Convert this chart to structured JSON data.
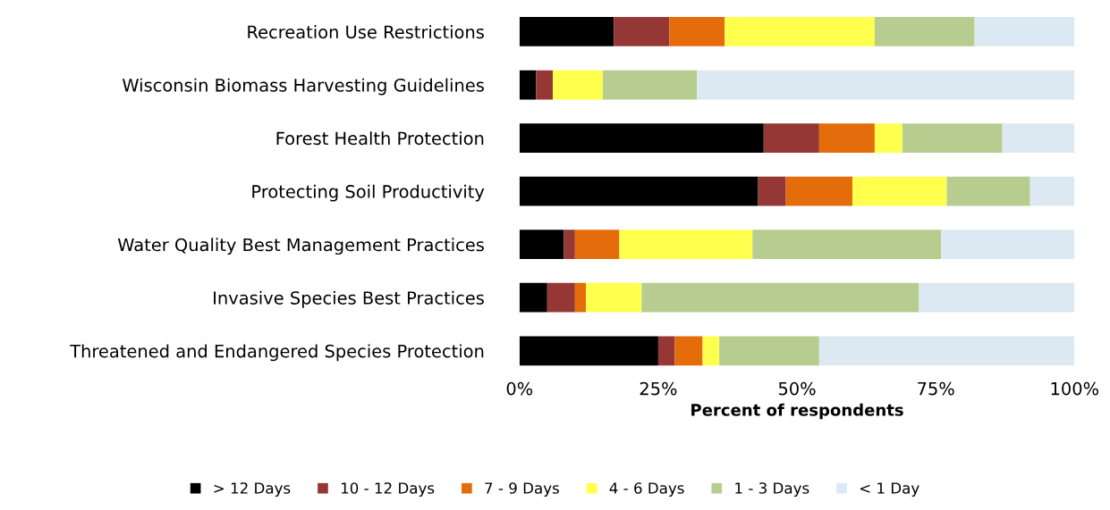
{
  "chart_data": {
    "type": "bar",
    "orientation": "horizontal",
    "stacked": true,
    "xlabel": "Percent of respondents",
    "categories": [
      "Recreation Use Restrictions",
      "Wisconsin Biomass Harvesting Guidelines",
      "Forest Health Protection",
      "Protecting Soil Productivity",
      "Water Quality Best Management Practices",
      "Invasive Species Best Practices",
      "Threatened and Endangered Species Protection"
    ],
    "series": [
      {
        "name": "> 12 Days",
        "color": "#000000",
        "values": [
          17,
          3,
          44,
          43,
          8,
          5,
          25
        ]
      },
      {
        "name": "10 - 12 Days",
        "color": "#953735",
        "values": [
          10,
          3,
          10,
          5,
          2,
          5,
          3
        ]
      },
      {
        "name": "7 - 9 Days",
        "color": "#e46c0a",
        "values": [
          10,
          0,
          10,
          12,
          8,
          2,
          5
        ]
      },
      {
        "name": "4 - 6 Days",
        "color": "#ffff4d",
        "values": [
          27,
          9,
          5,
          17,
          24,
          10,
          3
        ]
      },
      {
        "name": "1 - 3 Days",
        "color": "#b7cc8f",
        "values": [
          18,
          17,
          18,
          15,
          34,
          50,
          18
        ]
      },
      {
        "name": "< 1 Day",
        "color": "#dce9f3",
        "values": [
          18,
          68,
          13,
          8,
          24,
          28,
          46
        ]
      }
    ],
    "xlim": [
      0,
      100
    ],
    "xticks": [
      {
        "value": 0,
        "label": "0%"
      },
      {
        "value": 25,
        "label": "25%"
      },
      {
        "value": 50,
        "label": "50%"
      },
      {
        "value": 75,
        "label": "75%"
      },
      {
        "value": 100,
        "label": "100%"
      }
    ],
    "grid": false,
    "legend": "bottom"
  }
}
